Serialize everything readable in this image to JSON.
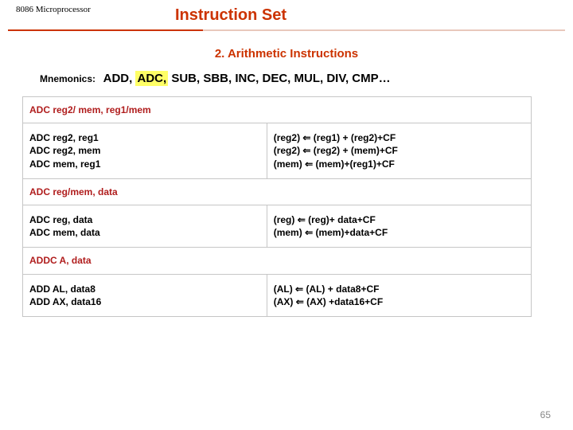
{
  "colors": {
    "brand": "#cc3300",
    "rule_light": "#e8c8bc",
    "highlight": "#ffff66",
    "header_red": "#b01d1d",
    "text_black": "#000000"
  },
  "header": {
    "topic": "8086 Microprocessor",
    "title": "Instruction Set"
  },
  "section_title": "2. Arithmetic Instructions",
  "mnemonics": {
    "label": "Mnemonics:",
    "pre": "ADD, ",
    "highlight": "ADC,",
    "post": " SUB, SBB, INC, DEC, MUL, DIV, CMP…"
  },
  "rows": [
    {
      "type": "header",
      "text": "ADC reg2/ mem, reg1/mem"
    },
    {
      "type": "data",
      "left": "ADC reg2, reg1\nADC reg2, mem\nADC mem, reg1",
      "right": "(reg2) ⇐ (reg1) + (reg2)+CF\n(reg2) ⇐ (reg2) + (mem)+CF\n(mem) ⇐ (mem)+(reg1)+CF"
    },
    {
      "type": "header",
      "text": "ADC reg/mem, data"
    },
    {
      "type": "data",
      "left": "ADC reg, data\nADC mem, data",
      "right": "(reg) ⇐ (reg)+ data+CF\n(mem) ⇐ (mem)+data+CF"
    },
    {
      "type": "header",
      "text": "ADDC A, data"
    },
    {
      "type": "data",
      "left": "ADD AL, data8\nADD AX, data16",
      "right": "(AL) ⇐  (AL) + data8+CF\n(AX) ⇐  (AX) +data16+CF"
    }
  ],
  "page_number": "65"
}
